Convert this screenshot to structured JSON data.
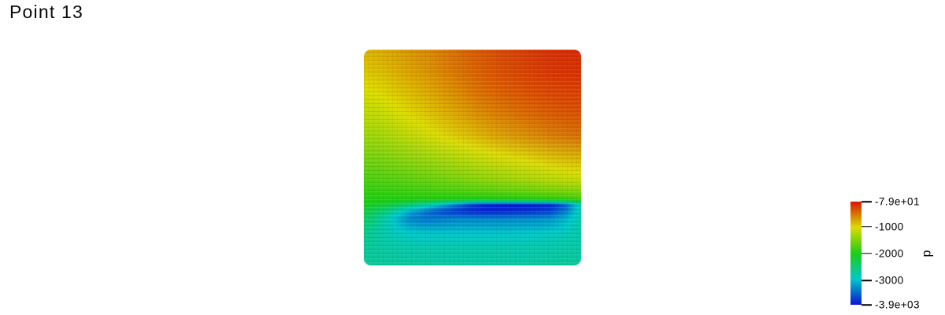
{
  "chart_data": {
    "type": "heatmap",
    "title": "Point 13",
    "field": "p",
    "value_range": [
      -3900,
      -79
    ],
    "colormap": {
      "name": "blue-to-red-rainbow",
      "stops": [
        {
          "t": 0.0,
          "color": "#0A14D2"
        },
        {
          "t": 0.25,
          "color": "#00C8C8"
        },
        {
          "t": 0.5,
          "color": "#1ECD14"
        },
        {
          "t": 0.75,
          "color": "#DCDC00"
        },
        {
          "t": 1.0,
          "color": "#D71405"
        }
      ]
    },
    "colorbar": {
      "label": "p",
      "ticks": [
        {
          "label": "-7.9e+01",
          "value": -79
        },
        {
          "label": "-1000",
          "value": -1000
        },
        {
          "label": "-2000",
          "value": -2000
        },
        {
          "label": "-3000",
          "value": -3000
        },
        {
          "label": "-3.9e+03",
          "value": -3900
        }
      ]
    },
    "grid": {
      "x": [
        0,
        0.07,
        0.14,
        0.21,
        0.29,
        0.36,
        0.43,
        0.5,
        0.57,
        0.64,
        0.71,
        0.79,
        0.86,
        0.93,
        1.0
      ],
      "rows": [
        {
          "y": 0.0,
          "p": [
            -840,
            -810,
            -760,
            -700,
            -640,
            -570,
            -500,
            -430,
            -380,
            -330,
            -290,
            -250,
            -220,
            -200,
            -190
          ]
        },
        {
          "y": 0.1,
          "p": [
            -930,
            -890,
            -830,
            -760,
            -690,
            -610,
            -540,
            -470,
            -410,
            -360,
            -320,
            -280,
            -250,
            -230,
            -220
          ]
        },
        {
          "y": 0.2,
          "p": [
            -1070,
            -1020,
            -950,
            -880,
            -800,
            -720,
            -640,
            -560,
            -490,
            -440,
            -400,
            -360,
            -330,
            -310,
            -300
          ]
        },
        {
          "y": 0.3,
          "p": [
            -1200,
            -1160,
            -1090,
            -1010,
            -930,
            -850,
            -780,
            -700,
            -630,
            -570,
            -520,
            -470,
            -430,
            -400,
            -380
          ]
        },
        {
          "y": 0.4,
          "p": [
            -1360,
            -1320,
            -1260,
            -1180,
            -1100,
            -1020,
            -950,
            -880,
            -810,
            -750,
            -700,
            -640,
            -590,
            -550,
            -520
          ]
        },
        {
          "y": 0.5,
          "p": [
            -1560,
            -1520,
            -1470,
            -1410,
            -1350,
            -1290,
            -1230,
            -1170,
            -1110,
            -1060,
            -1010,
            -950,
            -900,
            -860,
            -830
          ]
        },
        {
          "y": 0.6,
          "p": [
            -1760,
            -1730,
            -1700,
            -1660,
            -1610,
            -1560,
            -1510,
            -1460,
            -1410,
            -1360,
            -1310,
            -1260,
            -1210,
            -1160,
            -1120
          ]
        },
        {
          "y": 0.66,
          "p": [
            -1890,
            -1880,
            -1860,
            -1840,
            -1820,
            -1800,
            -1780,
            -1750,
            -1720,
            -1690,
            -1660,
            -1620,
            -1580,
            -1540,
            -1500
          ]
        },
        {
          "y": 0.695,
          "p": [
            -1950,
            -1950,
            -1960,
            -1970,
            -1980,
            -1990,
            -2000,
            -2010,
            -2010,
            -2000,
            -1990,
            -1970,
            -1950,
            -1890,
            -1830
          ]
        },
        {
          "y": 0.72,
          "p": [
            -2050,
            -2150,
            -2300,
            -2500,
            -2750,
            -3050,
            -3400,
            -3700,
            -3820,
            -3860,
            -3860,
            -3830,
            -3780,
            -3500,
            -2800
          ]
        },
        {
          "y": 0.75,
          "p": [
            -2250,
            -2450,
            -2750,
            -3100,
            -3400,
            -3600,
            -3720,
            -3780,
            -3800,
            -3790,
            -3760,
            -3720,
            -3650,
            -3350,
            -2800
          ]
        },
        {
          "y": 0.785,
          "p": [
            -2400,
            -2650,
            -3000,
            -3300,
            -3400,
            -3350,
            -3300,
            -3300,
            -3300,
            -3300,
            -3280,
            -3260,
            -3220,
            -3050,
            -2750
          ]
        },
        {
          "y": 0.85,
          "p": [
            -2600,
            -2750,
            -2880,
            -2950,
            -2980,
            -2980,
            -2980,
            -2980,
            -2980,
            -2980,
            -2970,
            -2960,
            -2930,
            -2870,
            -2780
          ]
        },
        {
          "y": 0.92,
          "p": [
            -2680,
            -2720,
            -2760,
            -2790,
            -2800,
            -2810,
            -2810,
            -2810,
            -2810,
            -2810,
            -2810,
            -2800,
            -2790,
            -2770,
            -2740
          ]
        },
        {
          "y": 1.0,
          "p": [
            -2680,
            -2700,
            -2720,
            -2740,
            -2750,
            -2760,
            -2760,
            -2760,
            -2760,
            -2760,
            -2760,
            -2750,
            -2740,
            -2720,
            -2700
          ]
        }
      ]
    }
  }
}
